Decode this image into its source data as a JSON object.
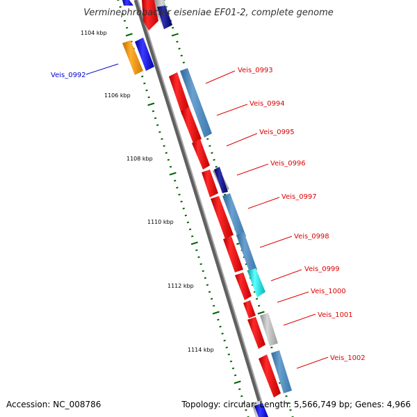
{
  "title": "Verminephrobacter eiseniae EF01-2, complete genome",
  "accession": "Accession: NC_008786",
  "topology": "Topology: circular; Length: 5,566,749 bp; Genes: 4,966",
  "colors": {
    "forward_cds": "#ee1111",
    "reverse_cds": "#0000ee",
    "other_cds": "#ffa000",
    "blue_gray": "#4a86b8",
    "navy": "#000080",
    "gray": "#b0b0b0",
    "cyan": "#10d8d8",
    "tick": "#006400",
    "backbone": "#808080"
  },
  "kbp_labels": [
    "1104 kbp",
    "1106 kbp",
    "1108 kbp",
    "1110 kbp",
    "1112 kbp",
    "1114 kbp"
  ],
  "gene_labels": [
    "Veis_0992",
    "Veis_0993",
    "Veis_0994",
    "Veis_0995",
    "Veis_0996",
    "Veis_0997",
    "Veis_0998",
    "Veis_0999",
    "Veis_1000",
    "Veis_1001",
    "Veis_1002"
  ]
}
